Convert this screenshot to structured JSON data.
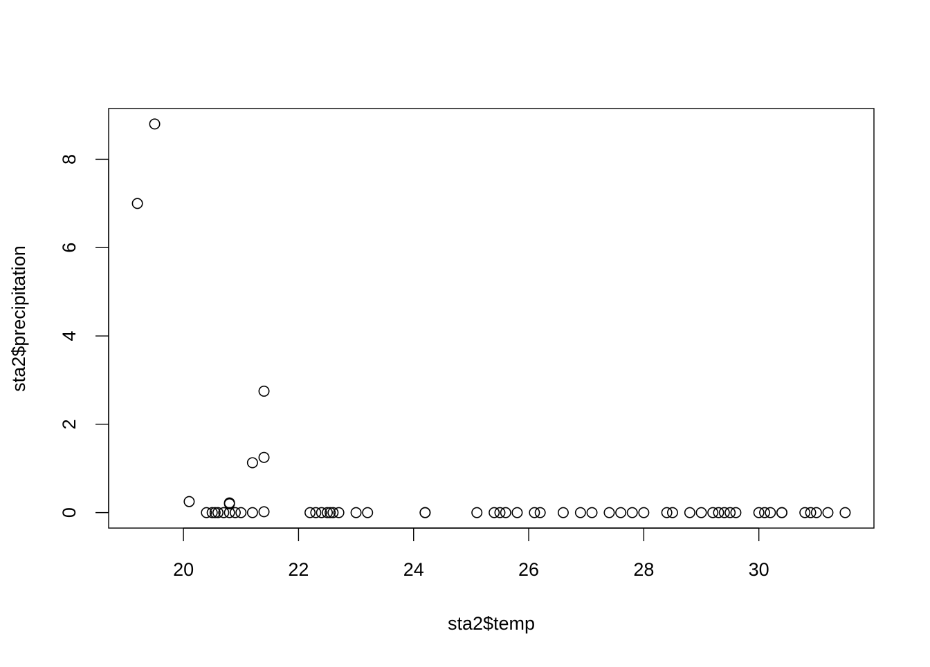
{
  "chart_data": {
    "type": "scatter",
    "title": "",
    "xlabel": "sta2$temp",
    "ylabel": "sta2$precipitation",
    "xlim": [
      18.7,
      32.0
    ],
    "ylim": [
      -0.35,
      9.15
    ],
    "x_ticks": [
      20,
      22,
      24,
      26,
      28,
      30
    ],
    "y_ticks": [
      0,
      2,
      4,
      6,
      8
    ],
    "x_tick_labels": [
      "20",
      "22",
      "24",
      "26",
      "28",
      "30"
    ],
    "y_tick_labels": [
      "0",
      "2",
      "4",
      "6",
      "8"
    ],
    "grid": false,
    "legend": "none",
    "marker": "open-circle",
    "color": "#000000",
    "x": [
      19.2,
      19.5,
      20.1,
      20.4,
      20.5,
      20.55,
      20.6,
      20.7,
      20.8,
      20.8,
      20.8,
      20.9,
      21.0,
      21.2,
      21.2,
      21.4,
      21.4,
      21.4,
      22.2,
      22.3,
      22.4,
      22.5,
      22.55,
      22.6,
      22.7,
      23.0,
      23.2,
      24.2,
      24.2,
      25.1,
      25.4,
      25.5,
      25.6,
      25.8,
      26.1,
      26.2,
      26.6,
      26.9,
      27.1,
      27.4,
      27.6,
      27.8,
      28.0,
      28.4,
      28.5,
      28.8,
      29.0,
      29.2,
      29.3,
      29.4,
      29.5,
      29.6,
      30.0,
      30.1,
      30.2,
      30.4,
      30.4,
      30.8,
      30.9,
      31.0,
      31.2,
      31.5
    ],
    "y": [
      7.0,
      8.8,
      0.25,
      0.0,
      0.0,
      0.0,
      0.0,
      0.0,
      0.22,
      0.2,
      0.0,
      0.0,
      0.0,
      1.13,
      0.0,
      2.75,
      1.25,
      0.02,
      0.0,
      0.0,
      0.0,
      0.0,
      0.0,
      0.0,
      0.0,
      0.0,
      0.0,
      0.0,
      0.0,
      0.0,
      0.0,
      0.0,
      0.0,
      0.0,
      0.0,
      0.0,
      0.0,
      0.0,
      0.0,
      0.0,
      0.0,
      0.0,
      0.0,
      0.0,
      0.0,
      0.0,
      0.0,
      0.0,
      0.0,
      0.0,
      0.0,
      0.0,
      0.0,
      0.0,
      0.0,
      0.0,
      0.0,
      0.0,
      0.0,
      0.0,
      0.0,
      0.0
    ]
  }
}
